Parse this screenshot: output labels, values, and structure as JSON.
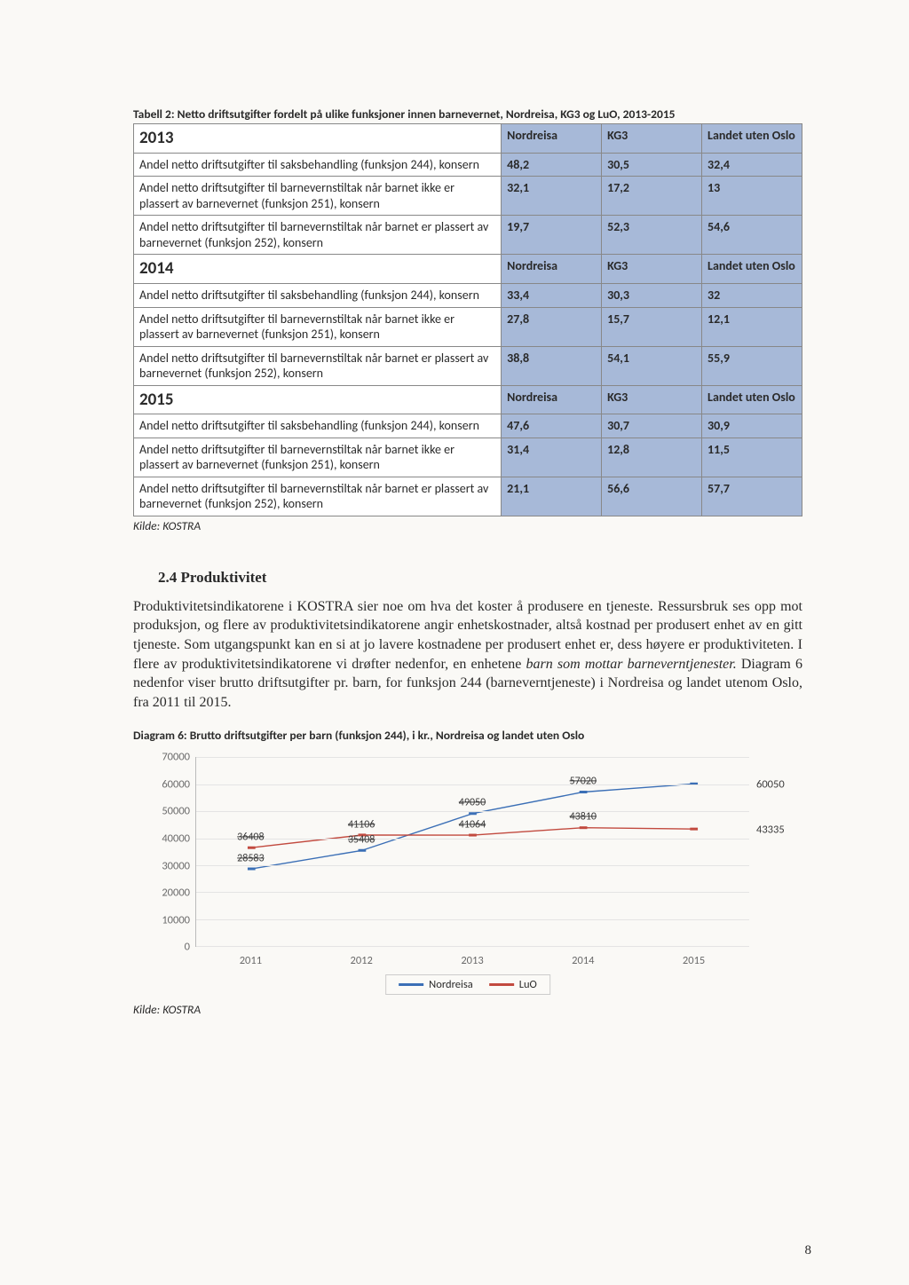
{
  "table": {
    "caption": "Tabell 2: Netto driftsutgifter fordelt på ulike funksjoner innen barnevernet, Nordreisa, KG3 og LuO, 2013-2015",
    "col_headers": [
      "Nordreisa",
      "KG3",
      "Landet uten Oslo"
    ],
    "row_labels": [
      "Andel netto driftsutgifter til saksbehandling (funksjon 244), konsern",
      "Andel netto driftsutgifter til barnevernstiltak når barnet ikke er plassert av barnevernet (funksjon 251), konsern",
      "Andel netto driftsutgifter til barnevernstiltak når barnet er plassert av barnevernet (funksjon 252), konsern"
    ],
    "blocks": [
      {
        "year": "2013",
        "rows": [
          [
            "48,2",
            "30,5",
            "32,4"
          ],
          [
            "32,1",
            "17,2",
            "13"
          ],
          [
            "19,7",
            "52,3",
            "54,6"
          ]
        ]
      },
      {
        "year": "2014",
        "rows": [
          [
            "33,4",
            "30,3",
            "32"
          ],
          [
            "27,8",
            "15,7",
            "12,1"
          ],
          [
            "38,8",
            "54,1",
            "55,9"
          ]
        ]
      },
      {
        "year": "2015",
        "rows": [
          [
            "47,6",
            "30,7",
            "30,9"
          ],
          [
            "31,4",
            "12,8",
            "11,5"
          ],
          [
            "21,1",
            "56,6",
            "57,7"
          ]
        ]
      }
    ],
    "source": "Kilde: KOSTRA",
    "header_bg": "#a7b9d8",
    "border_color": "#888"
  },
  "section": {
    "heading": "2.4 Produktivitet",
    "body_pre": "Produktivitetsindikatorene i KOSTRA sier noe om hva det koster å produsere en tjeneste. Ressursbruk ses opp mot produksjon, og flere av produktivitetsindikatorene angir enhetskostnader, altså kostnad per produsert enhet av en gitt tjeneste. Som utgangspunkt kan en si at jo lavere kostnadene per produsert enhet er, dess høyere er produktiviteten. I flere av produktivitetsindikatorene vi drøfter nedenfor, en enhetene ",
    "body_em": "barn som mottar barneverntjenester.",
    "body_post": " Diagram 6 nedenfor viser brutto driftsutgifter pr. barn, for funksjon 244 (barneverntjeneste) i Nordreisa og landet utenom Oslo, fra 2011 til 2015."
  },
  "chart": {
    "caption": "Diagram 6: Brutto driftsutgifter per barn (funksjon 244), i kr., Nordreisa og landet uten Oslo",
    "type": "line",
    "x_categories": [
      "2011",
      "2012",
      "2013",
      "2014",
      "2015"
    ],
    "ylim": [
      0,
      70000
    ],
    "ytick_step": 10000,
    "series": [
      {
        "name": "Nordreisa",
        "color": "#3b6fb6",
        "values": [
          28583,
          35408,
          49050,
          57020,
          60050
        ],
        "data_labels": [
          "28583",
          "35408",
          "49050",
          "57020",
          ""
        ],
        "end_label": "60050"
      },
      {
        "name": "LuO",
        "color": "#c24a3f",
        "values": [
          36408,
          41106,
          41064,
          43810,
          43335
        ],
        "data_labels": [
          "36408",
          "41106",
          "41064",
          "43810",
          ""
        ],
        "end_label": "43335"
      }
    ],
    "grid_color": "#e4e4e4",
    "axis_color": "#bbb",
    "tick_label_color": "#6a6a6a",
    "background_color": "#faf9f6",
    "line_width": 3,
    "label_fontsize": 12.5,
    "source": "Kilde: KOSTRA"
  },
  "page_number": "8"
}
